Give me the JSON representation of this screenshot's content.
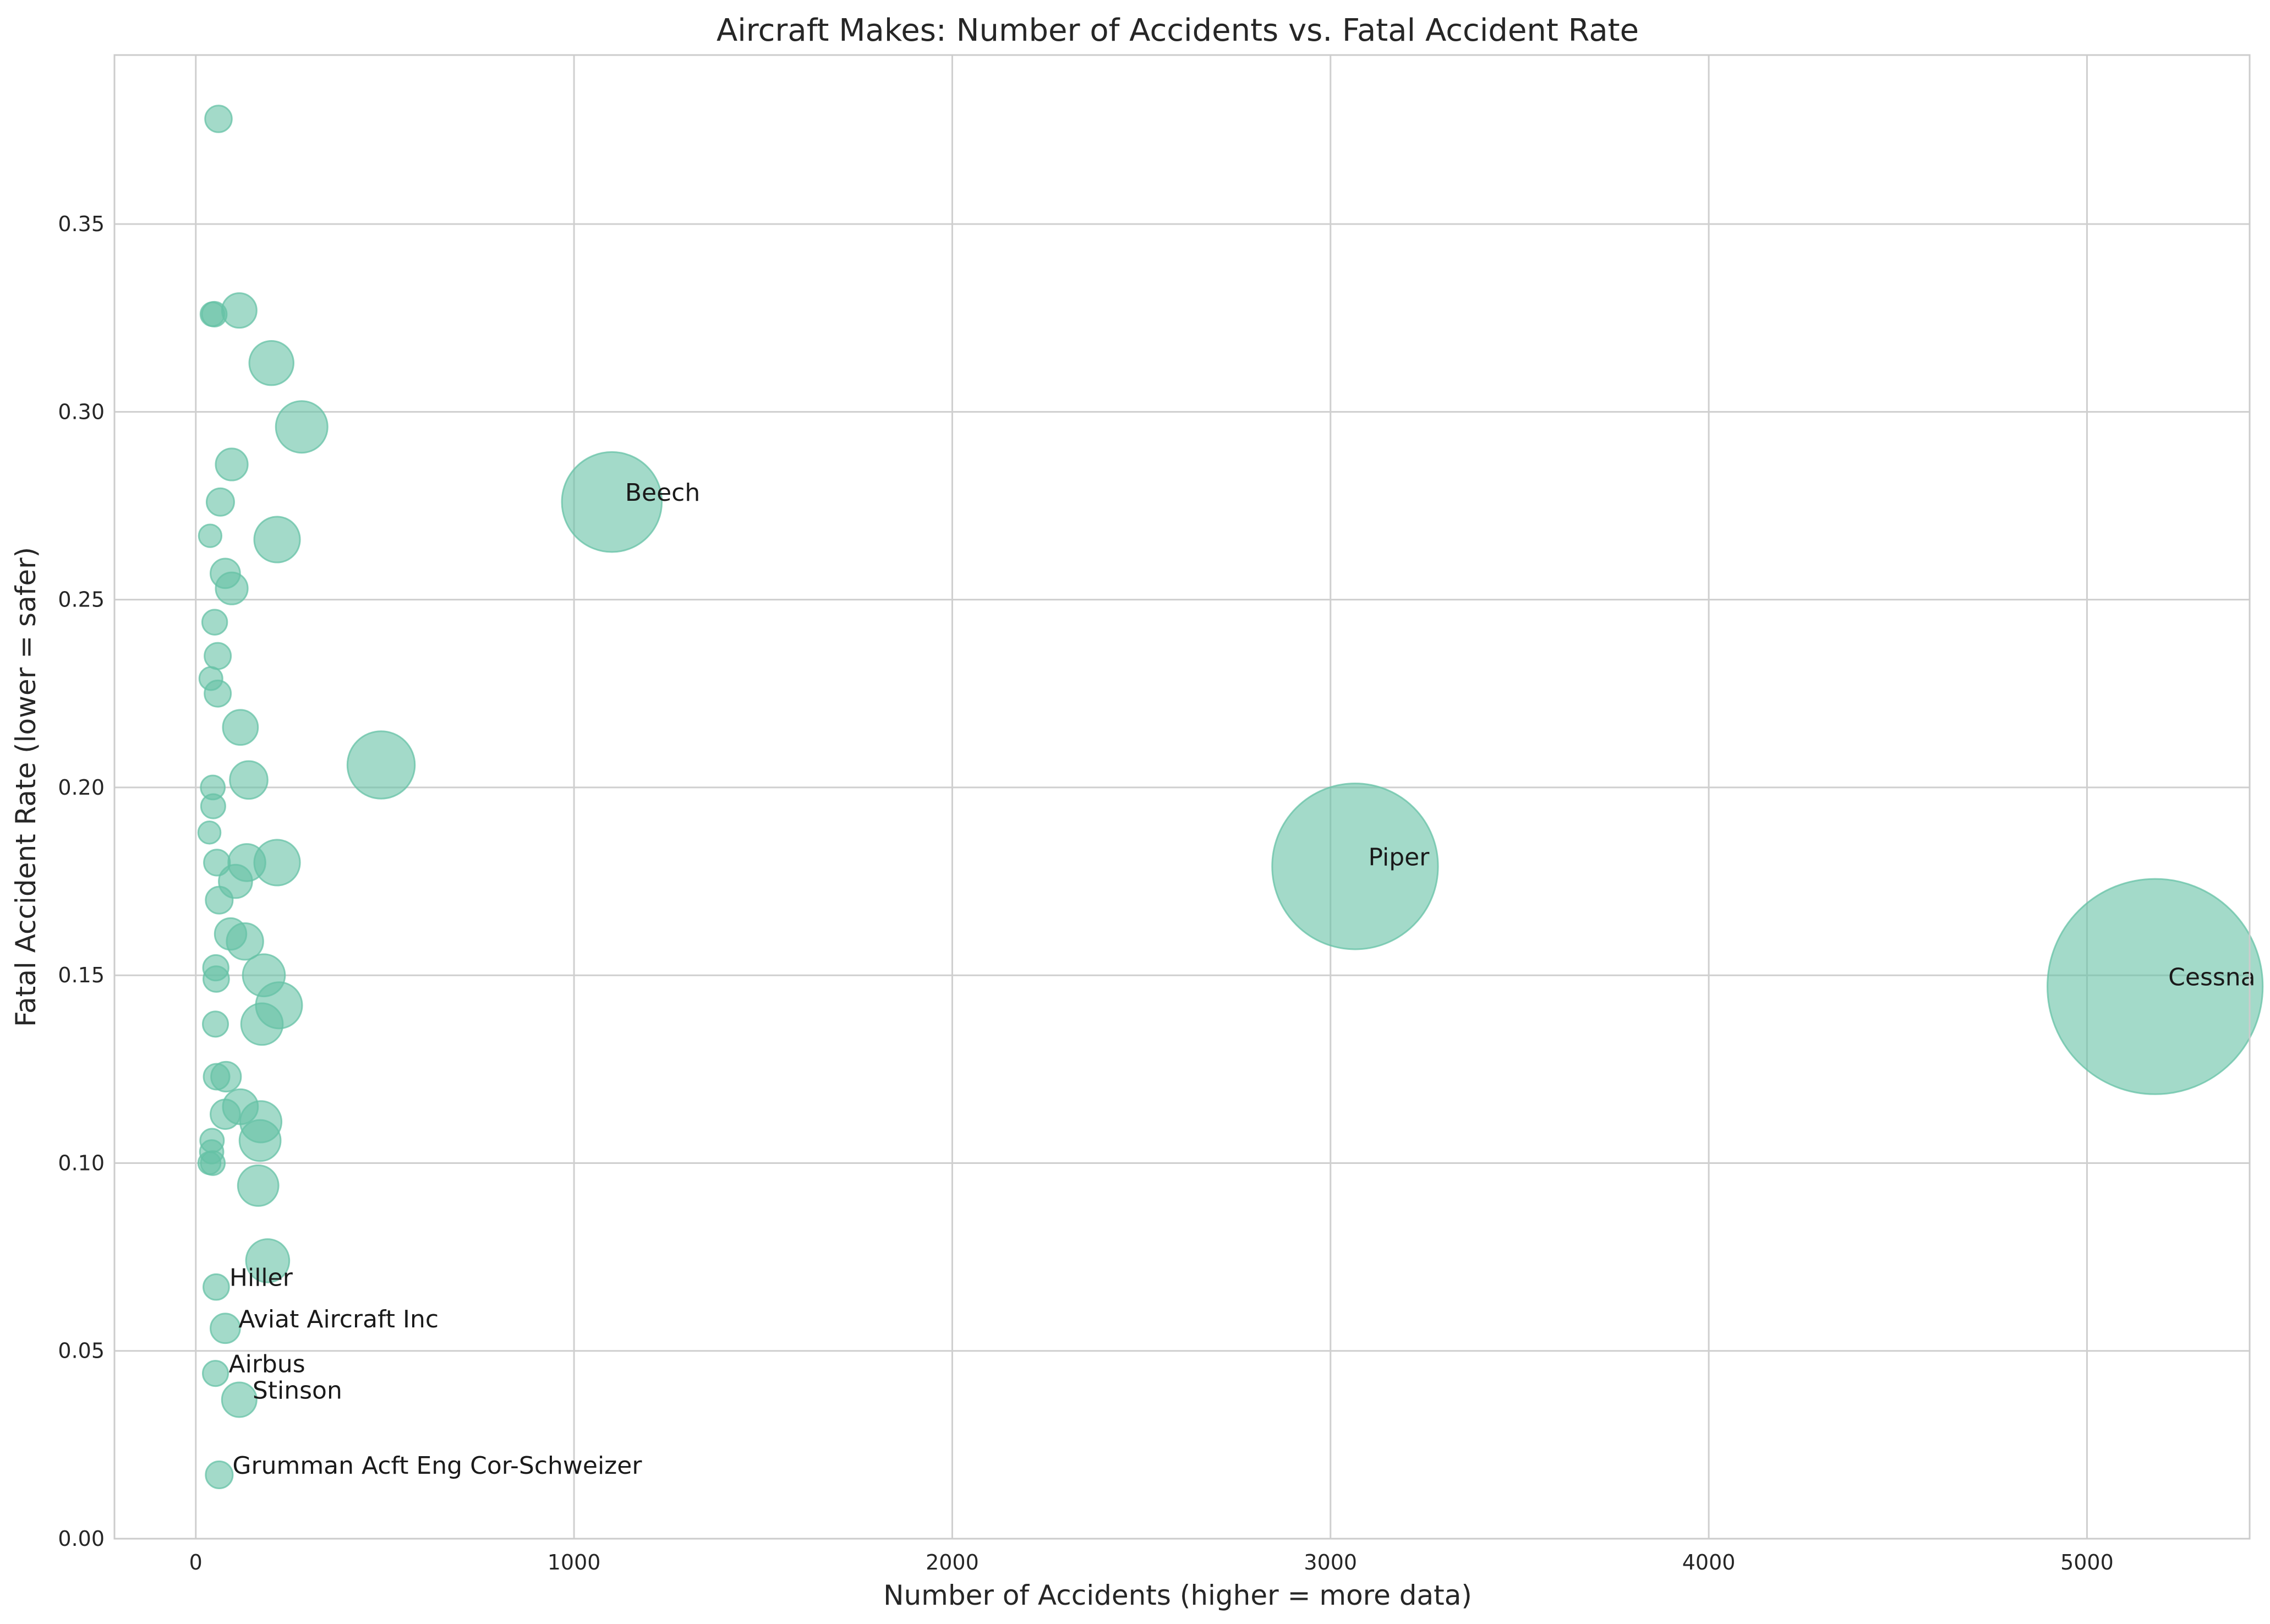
{
  "chart_data": {
    "type": "scatter",
    "title": "Aircraft Makes: Number of Accidents vs. Fatal Accident Rate",
    "xlabel": "Number of Accidents (higher = more data)",
    "ylabel": "Fatal Accident Rate (lower = safer)",
    "xlim": [
      -215,
      5430
    ],
    "ylim": [
      0,
      0.395
    ],
    "xticks": [
      0,
      1000,
      2000,
      3000,
      4000,
      5000
    ],
    "xtick_labels": [
      "0",
      "1000",
      "2000",
      "3000",
      "4000",
      "5000"
    ],
    "yticks": [
      0,
      0.05,
      0.1,
      0.15,
      0.2,
      0.25,
      0.3,
      0.35
    ],
    "ytick_labels": [
      "0.00",
      "0.05",
      "0.10",
      "0.15",
      "0.20",
      "0.25",
      "0.30",
      "0.35"
    ],
    "grid": true,
    "bubble_size_encodes": "number of accidents",
    "colors": {
      "point_fill": "#66c2a5",
      "point_edge": "#66c2a5",
      "grid": "#cfcfcf"
    },
    "points": [
      {
        "x": 5180,
        "y": 0.147,
        "label": "Cessna"
      },
      {
        "x": 3065,
        "y": 0.179,
        "label": "Piper"
      },
      {
        "x": 1100,
        "y": 0.276,
        "label": "Beech"
      },
      {
        "x": 490,
        "y": 0.206,
        "label": ""
      },
      {
        "x": 280,
        "y": 0.296,
        "label": ""
      },
      {
        "x": 220,
        "y": 0.142,
        "label": ""
      },
      {
        "x": 215,
        "y": 0.18,
        "label": ""
      },
      {
        "x": 215,
        "y": 0.266,
        "label": ""
      },
      {
        "x": 200,
        "y": 0.313,
        "label": ""
      },
      {
        "x": 190,
        "y": 0.074,
        "label": ""
      },
      {
        "x": 180,
        "y": 0.15,
        "label": ""
      },
      {
        "x": 175,
        "y": 0.137,
        "label": ""
      },
      {
        "x": 172,
        "y": 0.111,
        "label": ""
      },
      {
        "x": 170,
        "y": 0.106,
        "label": ""
      },
      {
        "x": 165,
        "y": 0.094,
        "label": ""
      },
      {
        "x": 140,
        "y": 0.202,
        "label": ""
      },
      {
        "x": 135,
        "y": 0.18,
        "label": ""
      },
      {
        "x": 130,
        "y": 0.159,
        "label": ""
      },
      {
        "x": 118,
        "y": 0.216,
        "label": ""
      },
      {
        "x": 118,
        "y": 0.115,
        "label": ""
      },
      {
        "x": 115,
        "y": 0.327,
        "label": ""
      },
      {
        "x": 115,
        "y": 0.037,
        "label": "Stinson"
      },
      {
        "x": 105,
        "y": 0.175,
        "label": ""
      },
      {
        "x": 95,
        "y": 0.286,
        "label": ""
      },
      {
        "x": 95,
        "y": 0.253,
        "label": ""
      },
      {
        "x": 92,
        "y": 0.161,
        "label": ""
      },
      {
        "x": 80,
        "y": 0.123,
        "label": ""
      },
      {
        "x": 78,
        "y": 0.257,
        "label": ""
      },
      {
        "x": 78,
        "y": 0.113,
        "label": ""
      },
      {
        "x": 78,
        "y": 0.056,
        "label": "Aviat Aircraft Inc"
      },
      {
        "x": 65,
        "y": 0.276,
        "label": ""
      },
      {
        "x": 62,
        "y": 0.17,
        "label": ""
      },
      {
        "x": 62,
        "y": 0.017,
        "label": "Grumman Acft Eng Cor-Schweizer"
      },
      {
        "x": 60,
        "y": 0.378,
        "label": ""
      },
      {
        "x": 58,
        "y": 0.235,
        "label": ""
      },
      {
        "x": 58,
        "y": 0.225,
        "label": ""
      },
      {
        "x": 56,
        "y": 0.18,
        "label": ""
      },
      {
        "x": 55,
        "y": 0.123,
        "label": ""
      },
      {
        "x": 54,
        "y": 0.149,
        "label": ""
      },
      {
        "x": 54,
        "y": 0.067,
        "label": "Hiller"
      },
      {
        "x": 53,
        "y": 0.152,
        "label": ""
      },
      {
        "x": 52,
        "y": 0.137,
        "label": ""
      },
      {
        "x": 52,
        "y": 0.044,
        "label": "Airbus"
      },
      {
        "x": 50,
        "y": 0.244,
        "label": ""
      },
      {
        "x": 49,
        "y": 0.326,
        "label": ""
      },
      {
        "x": 46,
        "y": 0.195,
        "label": ""
      },
      {
        "x": 45,
        "y": 0.2,
        "label": ""
      },
      {
        "x": 45,
        "y": 0.1,
        "label": ""
      },
      {
        "x": 44,
        "y": 0.326,
        "label": ""
      },
      {
        "x": 43,
        "y": 0.106,
        "label": ""
      },
      {
        "x": 42,
        "y": 0.103,
        "label": ""
      },
      {
        "x": 40,
        "y": 0.229,
        "label": ""
      },
      {
        "x": 38,
        "y": 0.267,
        "label": ""
      },
      {
        "x": 36,
        "y": 0.188,
        "label": ""
      },
      {
        "x": 36,
        "y": 0.1,
        "label": ""
      }
    ]
  }
}
